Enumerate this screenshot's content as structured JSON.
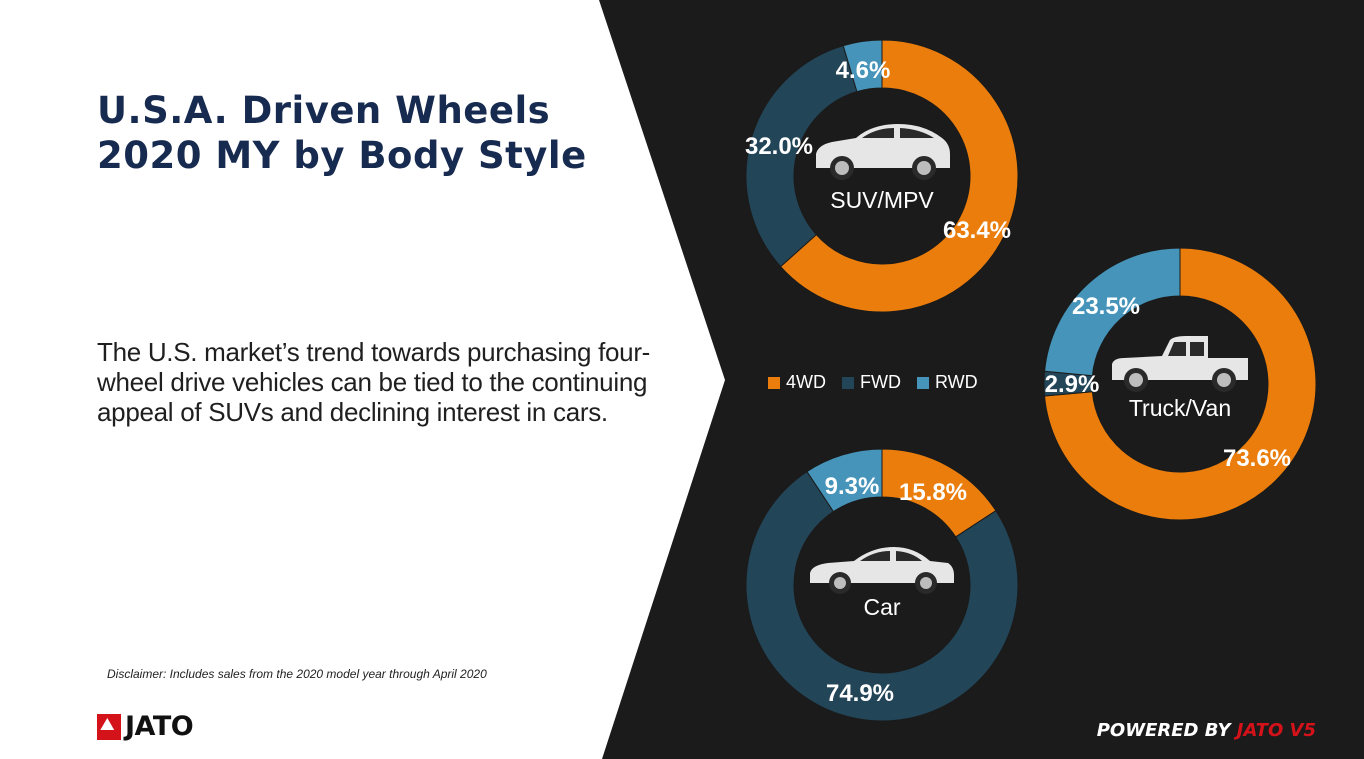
{
  "title": [
    "U.S.A. Driven Wheels",
    "2020 MY by Body Style"
  ],
  "description": "The U.S. market’s trend towards purchasing four-wheel drive vehicles can be tied to the continuing appeal of SUVs and declining interest in cars.",
  "disclaimer": "Disclaimer: Includes sales from the 2020 model year through April 2020",
  "logo": "JATO",
  "powered_by": {
    "prefix": "POWERED BY ",
    "brand": "JATO V5"
  },
  "colors": {
    "4WD": "#ea7d0b",
    "FWD": "#234558",
    "RWD": "#4694b9",
    "panel": "#1b1b1b",
    "brand_red": "#d4121a",
    "title": "#172a4f"
  },
  "chart_data": [
    {
      "type": "pie",
      "title": "SUV/MPV",
      "icon": "suv-icon",
      "legend": [
        "4WD",
        "FWD",
        "RWD"
      ],
      "legend_position": "center",
      "slices": [
        {
          "name": "4WD",
          "value": 63.4
        },
        {
          "name": "FWD",
          "value": 32.0
        },
        {
          "name": "RWD",
          "value": 4.6
        }
      ]
    },
    {
      "type": "pie",
      "title": "Truck/Van",
      "icon": "pickup-truck-icon",
      "slices": [
        {
          "name": "4WD",
          "value": 73.6
        },
        {
          "name": "FWD",
          "value": 2.9
        },
        {
          "name": "RWD",
          "value": 23.5
        }
      ]
    },
    {
      "type": "pie",
      "title": "Car",
      "icon": "sedan-icon",
      "slices": [
        {
          "name": "4WD",
          "value": 15.8
        },
        {
          "name": "FWD",
          "value": 74.9
        },
        {
          "name": "RWD",
          "value": 9.3
        }
      ]
    }
  ]
}
